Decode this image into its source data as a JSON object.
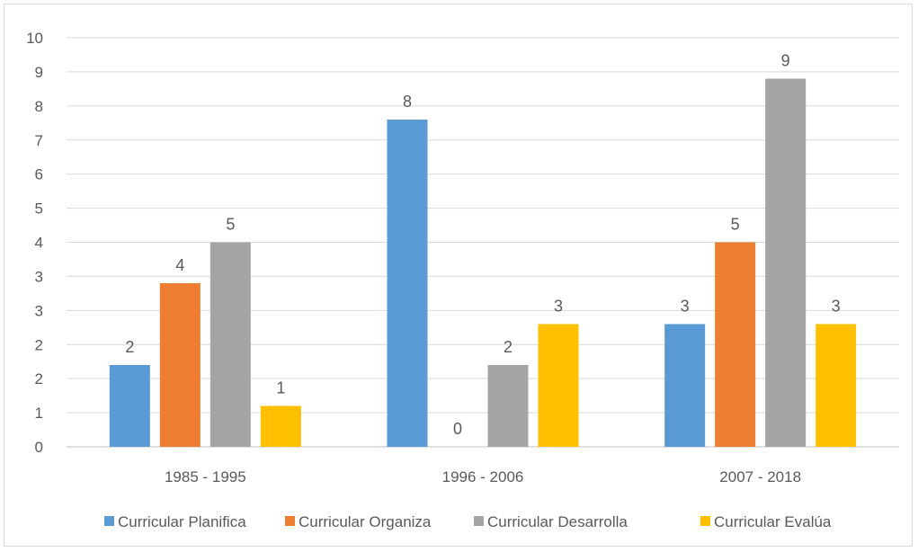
{
  "chart_data": {
    "type": "bar",
    "categories": [
      "1985 - 1995",
      "1996 - 2006",
      "2007 - 2018"
    ],
    "series": [
      {
        "name": "Curricular Planifica",
        "color": "#5b9bd5",
        "values": [
          2,
          8,
          3
        ]
      },
      {
        "name": "Curricular Organiza",
        "color": "#ed7d31",
        "values": [
          4,
          0,
          5
        ]
      },
      {
        "name": "Curricular Desarrolla",
        "color": "#a5a5a5",
        "values": [
          5,
          2,
          9
        ]
      },
      {
        "name": "Curricular Evalúa",
        "color": "#ffc000",
        "values": [
          1,
          3,
          3
        ]
      }
    ],
    "y_tick_labels": [
      "0",
      "1",
      "2",
      "2",
      "3",
      "3",
      "4",
      "5",
      "6",
      "7",
      "8",
      "9",
      "10"
    ],
    "data_labels": [
      [
        "2",
        "8",
        "3"
      ],
      [
        "4",
        "0",
        "5"
      ],
      [
        "5",
        "2",
        "9"
      ],
      [
        "1",
        "3",
        "3"
      ]
    ],
    "ylim": [
      0,
      10
    ],
    "grid": true,
    "legend_position": "bottom"
  }
}
